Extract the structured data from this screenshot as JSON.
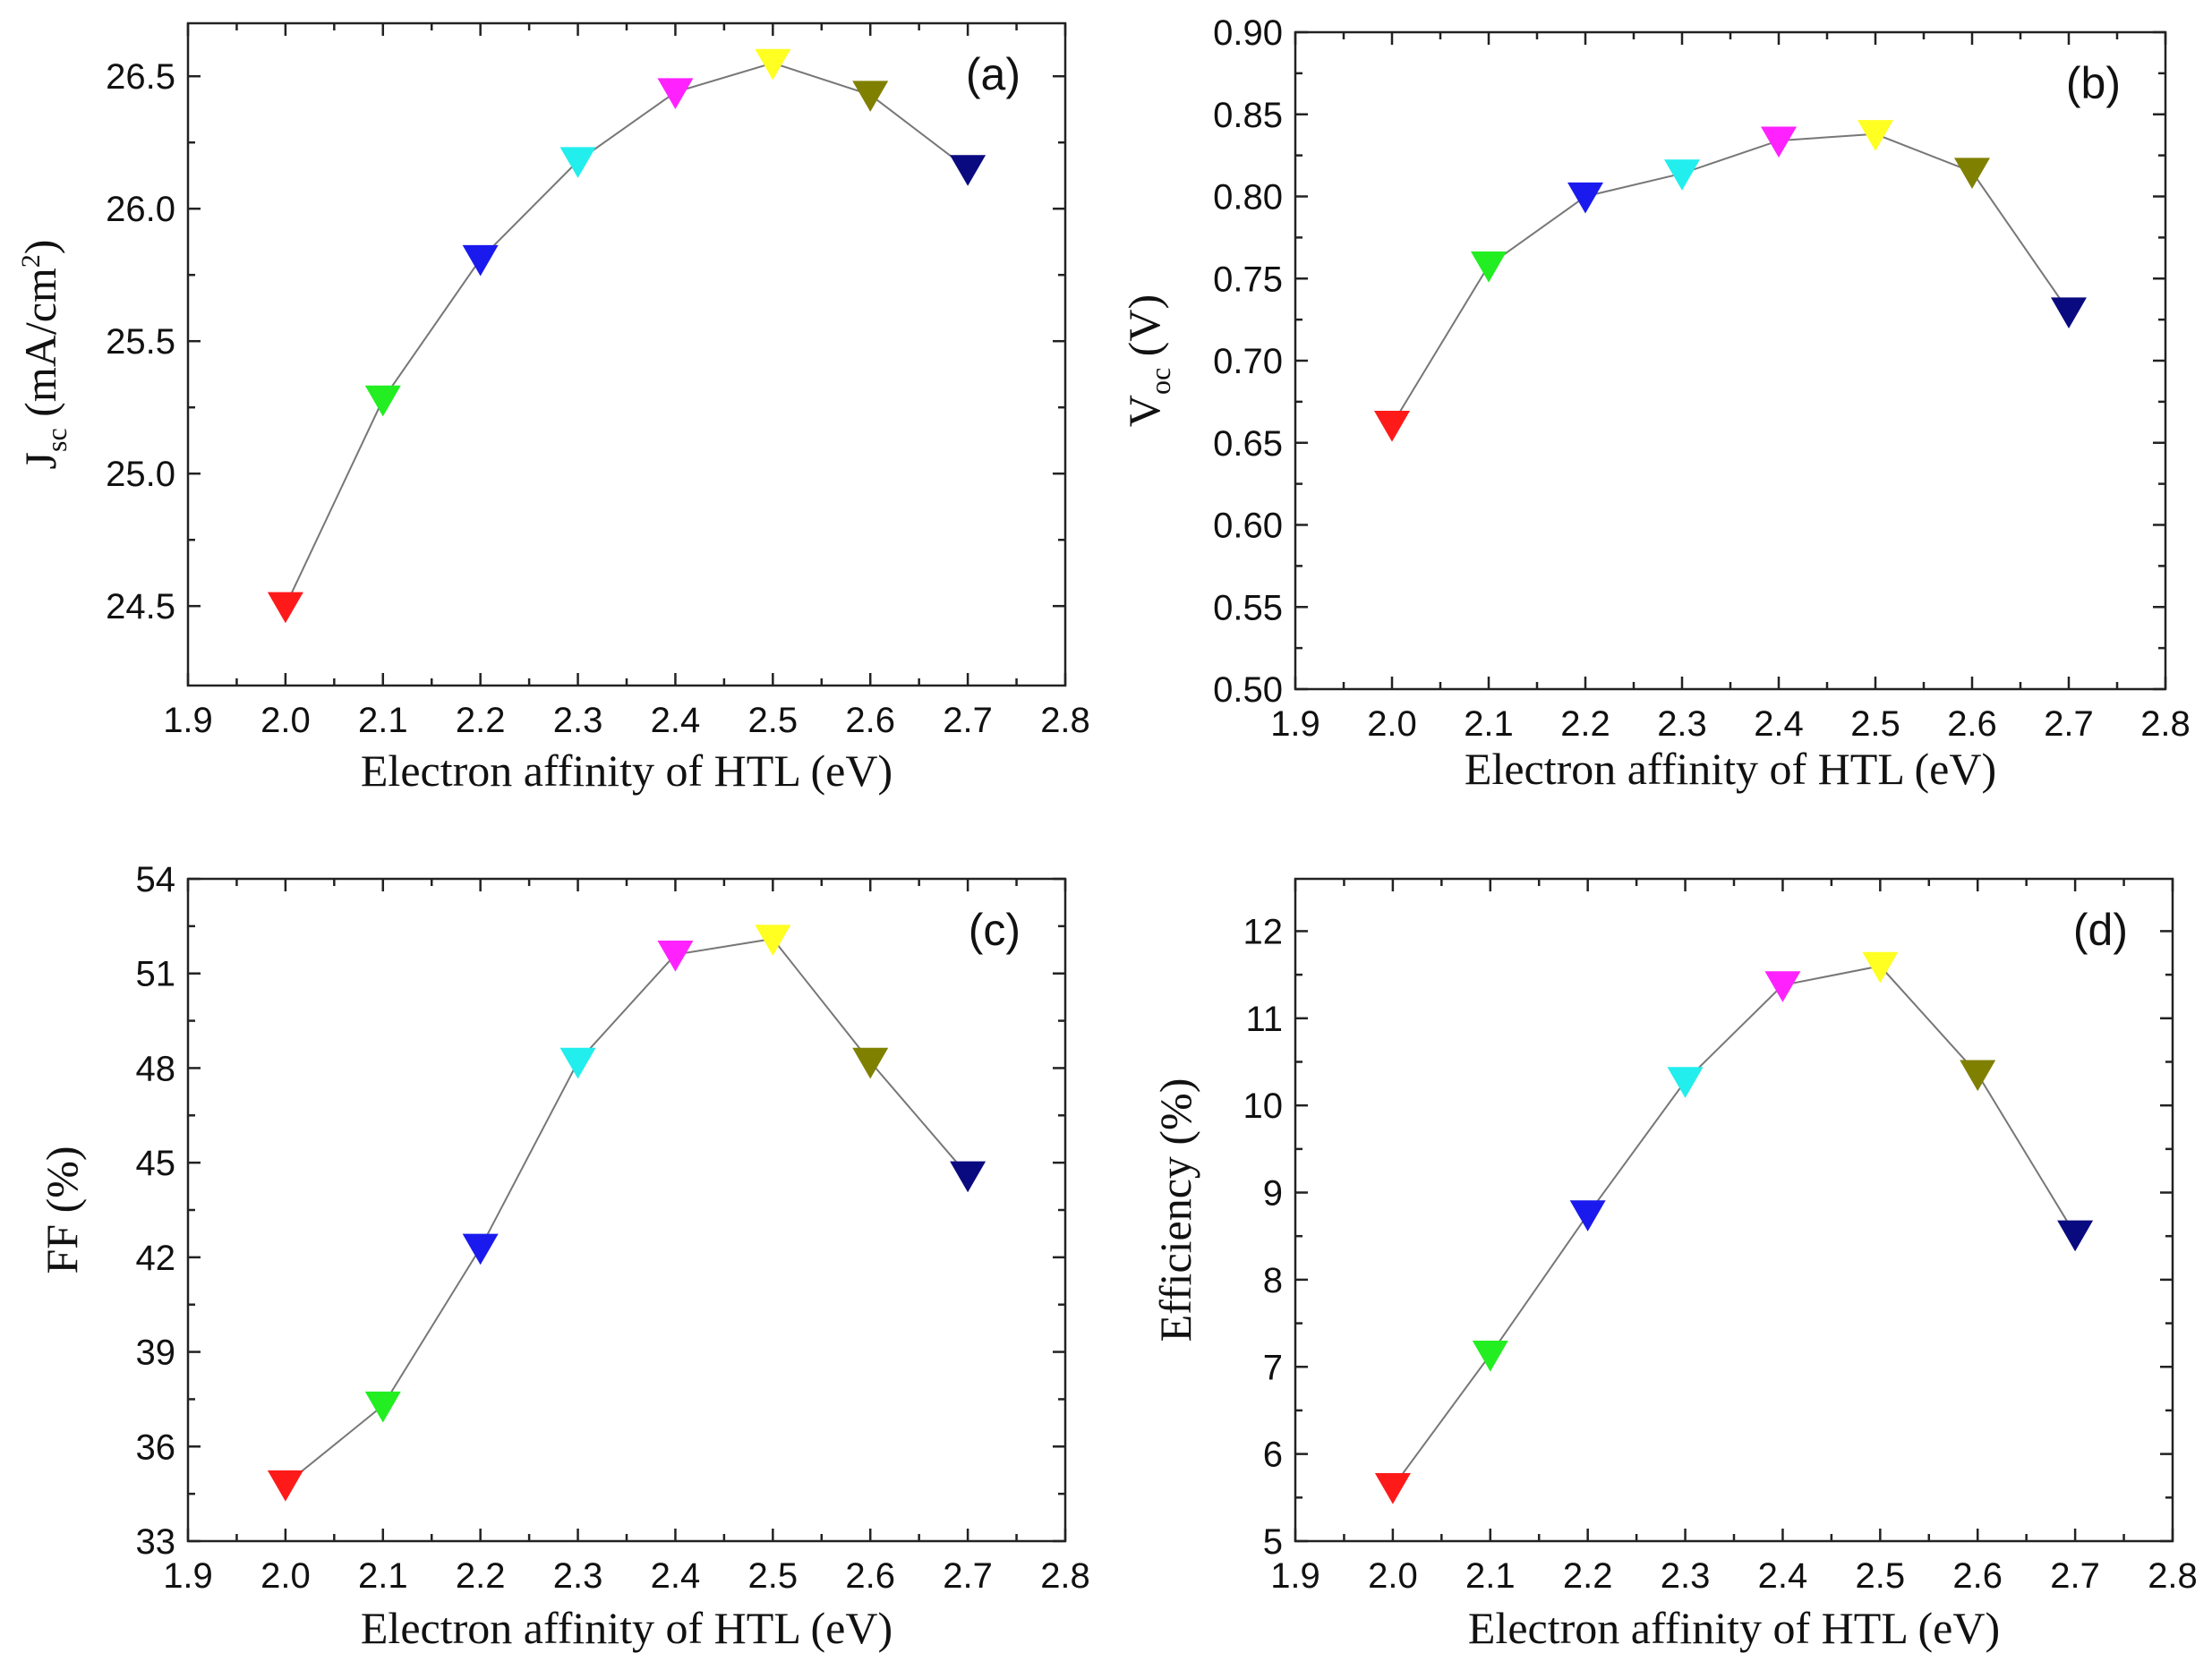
{
  "chart_data": [
    {
      "id": "a",
      "type": "scatter",
      "panel_label": "(a)",
      "xlabel": "Electron affinity of HTL (eV)",
      "ylabel": {
        "main": "J",
        "sub": "sc",
        "unit_pre": " (mA/cm",
        "unit_sup": "2",
        "unit_post": ")"
      },
      "xlim": [
        1.9,
        2.8
      ],
      "ylim": [
        24.2,
        26.7
      ],
      "xticks": [
        "1.9",
        "2.0",
        "2.1",
        "2.2",
        "2.3",
        "2.4",
        "2.5",
        "2.6",
        "2.7",
        "2.8"
      ],
      "yticks": [
        "24.5",
        "25.0",
        "25.5",
        "26.0",
        "26.5"
      ],
      "x": [
        2.0,
        2.1,
        2.2,
        2.3,
        2.4,
        2.5,
        2.6,
        2.7
      ],
      "y": [
        24.5,
        25.28,
        25.81,
        26.18,
        26.44,
        26.55,
        26.43,
        26.15
      ]
    },
    {
      "id": "b",
      "type": "scatter",
      "panel_label": "(b)",
      "xlabel": "Electron affinity of HTL (eV)",
      "ylabel": {
        "main": "V",
        "sub": "oc",
        "unit_pre": " (V)",
        "unit_sup": "",
        "unit_post": ""
      },
      "xlim": [
        1.9,
        2.8
      ],
      "ylim": [
        0.5,
        0.9
      ],
      "xticks": [
        "1.9",
        "2.0",
        "2.1",
        "2.2",
        "2.3",
        "2.4",
        "2.5",
        "2.6",
        "2.7",
        "2.8"
      ],
      "yticks": [
        "0.50",
        "0.55",
        "0.60",
        "0.65",
        "0.70",
        "0.75",
        "0.80",
        "0.85",
        "0.90"
      ],
      "x": [
        2.0,
        2.1,
        2.2,
        2.3,
        2.4,
        2.5,
        2.6,
        2.7
      ],
      "y": [
        0.661,
        0.758,
        0.8,
        0.814,
        0.834,
        0.838,
        0.815,
        0.73
      ]
    },
    {
      "id": "c",
      "type": "scatter",
      "panel_label": "(c)",
      "xlabel": "Electron affinity of HTL (eV)",
      "ylabel": {
        "main": "FF (%)",
        "sub": "",
        "unit_pre": "",
        "unit_sup": "",
        "unit_post": ""
      },
      "xlim": [
        1.9,
        2.8
      ],
      "ylim": [
        33,
        54
      ],
      "xticks": [
        "1.9",
        "2.0",
        "2.1",
        "2.2",
        "2.3",
        "2.4",
        "2.5",
        "2.6",
        "2.7",
        "2.8"
      ],
      "yticks": [
        "33",
        "36",
        "39",
        "42",
        "45",
        "48",
        "51",
        "54"
      ],
      "x": [
        2.0,
        2.1,
        2.2,
        2.3,
        2.4,
        2.5,
        2.6,
        2.7
      ],
      "y": [
        34.8,
        37.3,
        42.3,
        48.2,
        51.6,
        52.1,
        48.2,
        44.6
      ]
    },
    {
      "id": "d",
      "type": "scatter",
      "panel_label": "(d)",
      "xlabel": "Electron affinity of HTL (eV)",
      "ylabel": {
        "main": "Efficiency (%)",
        "sub": "",
        "unit_pre": "",
        "unit_sup": "",
        "unit_post": ""
      },
      "xlim": [
        1.9,
        2.8
      ],
      "ylim": [
        5,
        12.6
      ],
      "xticks": [
        "1.9",
        "2.0",
        "2.1",
        "2.2",
        "2.3",
        "2.4",
        "2.5",
        "2.6",
        "2.7",
        "2.8"
      ],
      "yticks": [
        "5",
        "6",
        "7",
        "8",
        "9",
        "10",
        "11",
        "12"
      ],
      "x": [
        2.0,
        2.1,
        2.2,
        2.3,
        2.4,
        2.5,
        2.6,
        2.7
      ],
      "y": [
        5.62,
        7.14,
        8.75,
        10.28,
        11.38,
        11.6,
        10.36,
        8.52
      ]
    }
  ],
  "marker_colors": [
    "#ff1a1a",
    "#22ee22",
    "#1a1aee",
    "#22eeee",
    "#ff22ff",
    "#ffff22",
    "#808000",
    "#0a0a80"
  ],
  "line_color": "#777777"
}
